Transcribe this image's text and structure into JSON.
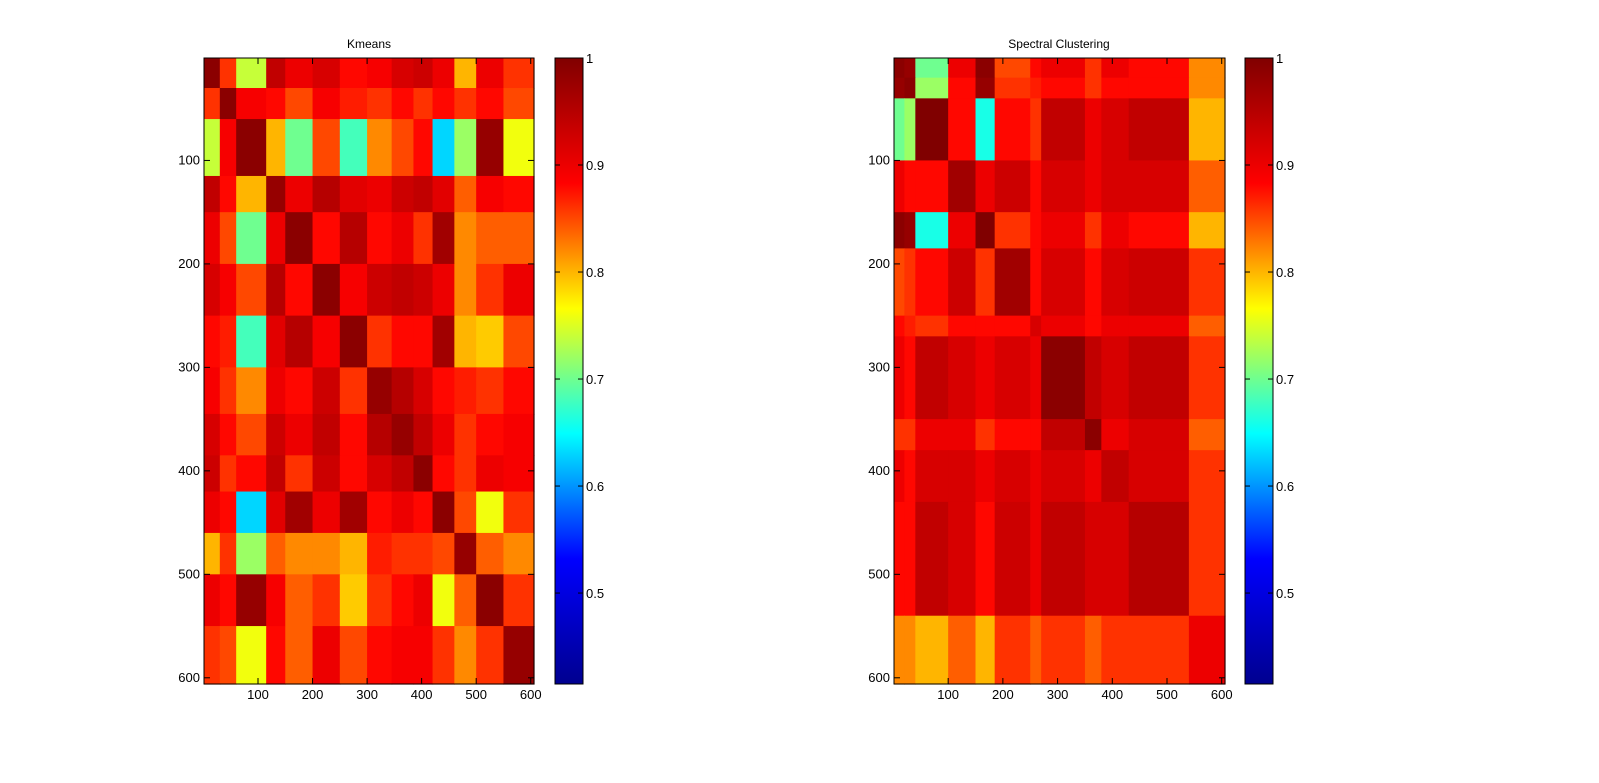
{
  "colormap": [
    "#00008f",
    "#0000ff",
    "#00ffff",
    "#ffff00",
    "#ff0000",
    "#800000"
  ],
  "chart_data": [
    {
      "type": "heatmap",
      "title": "Kmeans",
      "xlabel": "",
      "ylabel": "",
      "xlim": [
        1,
        606
      ],
      "ylim": [
        1,
        606
      ],
      "x_ticks": [
        100,
        200,
        300,
        400,
        500,
        600
      ],
      "y_ticks": [
        100,
        200,
        300,
        400,
        500,
        600
      ],
      "y_reversed": true,
      "colorbar": {
        "clim": [
          0.415,
          1.0
        ],
        "ticks": [
          0.5,
          0.6,
          0.7,
          0.8,
          0.9,
          1
        ],
        "tick_labels": [
          "0.5",
          "0.6",
          "0.7",
          "0.8",
          "0.9",
          "1"
        ]
      },
      "block_boundaries": [
        1,
        30,
        60,
        115,
        150,
        200,
        250,
        300,
        345,
        385,
        420,
        460,
        500,
        550,
        606
      ],
      "block_values": [
        [
          0.99,
          0.86,
          0.74,
          0.94,
          0.9,
          0.92,
          0.88,
          0.89,
          0.92,
          0.93,
          0.9,
          0.8,
          0.9,
          0.86
        ],
        [
          0.86,
          0.99,
          0.89,
          0.88,
          0.85,
          0.89,
          0.87,
          0.86,
          0.88,
          0.86,
          0.88,
          0.86,
          0.88,
          0.85
        ],
        [
          0.74,
          0.89,
          0.99,
          0.8,
          0.7,
          0.85,
          0.68,
          0.82,
          0.85,
          0.88,
          0.63,
          0.72,
          0.98,
          0.76
        ],
        [
          0.94,
          0.88,
          0.8,
          0.98,
          0.9,
          0.95,
          0.91,
          0.9,
          0.93,
          0.94,
          0.91,
          0.84,
          0.89,
          0.88
        ],
        [
          0.9,
          0.85,
          0.7,
          0.9,
          0.99,
          0.88,
          0.95,
          0.88,
          0.9,
          0.86,
          0.97,
          0.82,
          0.84,
          0.84
        ],
        [
          0.92,
          0.89,
          0.85,
          0.95,
          0.88,
          0.99,
          0.89,
          0.93,
          0.94,
          0.93,
          0.9,
          0.82,
          0.86,
          0.9
        ],
        [
          0.88,
          0.87,
          0.68,
          0.91,
          0.95,
          0.89,
          0.99,
          0.86,
          0.88,
          0.88,
          0.97,
          0.8,
          0.79,
          0.85
        ],
        [
          0.89,
          0.86,
          0.82,
          0.9,
          0.88,
          0.93,
          0.86,
          0.98,
          0.95,
          0.92,
          0.88,
          0.87,
          0.86,
          0.88
        ],
        [
          0.92,
          0.88,
          0.85,
          0.93,
          0.9,
          0.94,
          0.88,
          0.95,
          0.98,
          0.94,
          0.9,
          0.86,
          0.88,
          0.89
        ],
        [
          0.93,
          0.86,
          0.88,
          0.94,
          0.86,
          0.93,
          0.88,
          0.92,
          0.94,
          0.99,
          0.88,
          0.86,
          0.9,
          0.89
        ],
        [
          0.9,
          0.88,
          0.63,
          0.91,
          0.97,
          0.9,
          0.97,
          0.88,
          0.9,
          0.88,
          0.99,
          0.85,
          0.76,
          0.86
        ],
        [
          0.8,
          0.86,
          0.72,
          0.84,
          0.82,
          0.82,
          0.8,
          0.87,
          0.86,
          0.86,
          0.85,
          0.98,
          0.84,
          0.82
        ],
        [
          0.9,
          0.88,
          0.98,
          0.89,
          0.84,
          0.86,
          0.79,
          0.86,
          0.88,
          0.9,
          0.76,
          0.84,
          0.99,
          0.86
        ],
        [
          0.86,
          0.85,
          0.76,
          0.88,
          0.84,
          0.9,
          0.85,
          0.88,
          0.89,
          0.89,
          0.86,
          0.82,
          0.86,
          0.98
        ]
      ]
    },
    {
      "type": "heatmap",
      "title": "Spectral Clustering",
      "xlabel": "",
      "ylabel": "",
      "xlim": [
        1,
        606
      ],
      "ylim": [
        1,
        606
      ],
      "x_ticks": [
        100,
        200,
        300,
        400,
        500,
        600
      ],
      "y_ticks": [
        100,
        200,
        300,
        400,
        500,
        600
      ],
      "y_reversed": true,
      "colorbar": {
        "clim": [
          0.415,
          1.0
        ],
        "ticks": [
          0.5,
          0.6,
          0.7,
          0.8,
          0.9,
          1
        ],
        "tick_labels": [
          "0.5",
          "0.6",
          "0.7",
          "0.8",
          "0.9",
          "1"
        ]
      },
      "block_boundaries": [
        1,
        20,
        40,
        100,
        150,
        185,
        250,
        270,
        350,
        380,
        430,
        540,
        606
      ],
      "block_values": [
        [
          0.99,
          0.98,
          0.7,
          0.9,
          0.99,
          0.85,
          0.88,
          0.9,
          0.86,
          0.9,
          0.88,
          0.82
        ],
        [
          0.98,
          0.99,
          0.72,
          0.88,
          0.98,
          0.86,
          0.87,
          0.88,
          0.86,
          0.88,
          0.88,
          0.82
        ],
        [
          0.7,
          0.72,
          1.0,
          0.88,
          0.66,
          0.88,
          0.86,
          0.94,
          0.9,
          0.92,
          0.94,
          0.8
        ],
        [
          0.9,
          0.88,
          0.88,
          0.97,
          0.9,
          0.93,
          0.88,
          0.92,
          0.9,
          0.92,
          0.92,
          0.84
        ],
        [
          0.99,
          0.98,
          0.66,
          0.9,
          1.0,
          0.86,
          0.88,
          0.9,
          0.86,
          0.9,
          0.88,
          0.8
        ],
        [
          0.85,
          0.86,
          0.88,
          0.93,
          0.86,
          0.97,
          0.88,
          0.92,
          0.88,
          0.92,
          0.93,
          0.86
        ],
        [
          0.88,
          0.87,
          0.86,
          0.88,
          0.88,
          0.88,
          0.92,
          0.9,
          0.88,
          0.9,
          0.9,
          0.84
        ],
        [
          0.9,
          0.88,
          0.94,
          0.92,
          0.9,
          0.92,
          0.9,
          0.99,
          0.94,
          0.92,
          0.94,
          0.86
        ],
        [
          0.86,
          0.86,
          0.9,
          0.9,
          0.86,
          0.88,
          0.88,
          0.94,
          0.99,
          0.9,
          0.92,
          0.84
        ],
        [
          0.9,
          0.88,
          0.92,
          0.92,
          0.9,
          0.92,
          0.9,
          0.92,
          0.9,
          0.94,
          0.92,
          0.86
        ],
        [
          0.88,
          0.88,
          0.94,
          0.92,
          0.88,
          0.93,
          0.9,
          0.94,
          0.92,
          0.92,
          0.95,
          0.86
        ],
        [
          0.82,
          0.82,
          0.8,
          0.84,
          0.8,
          0.86,
          0.84,
          0.86,
          0.84,
          0.86,
          0.86,
          0.9
        ]
      ]
    }
  ]
}
